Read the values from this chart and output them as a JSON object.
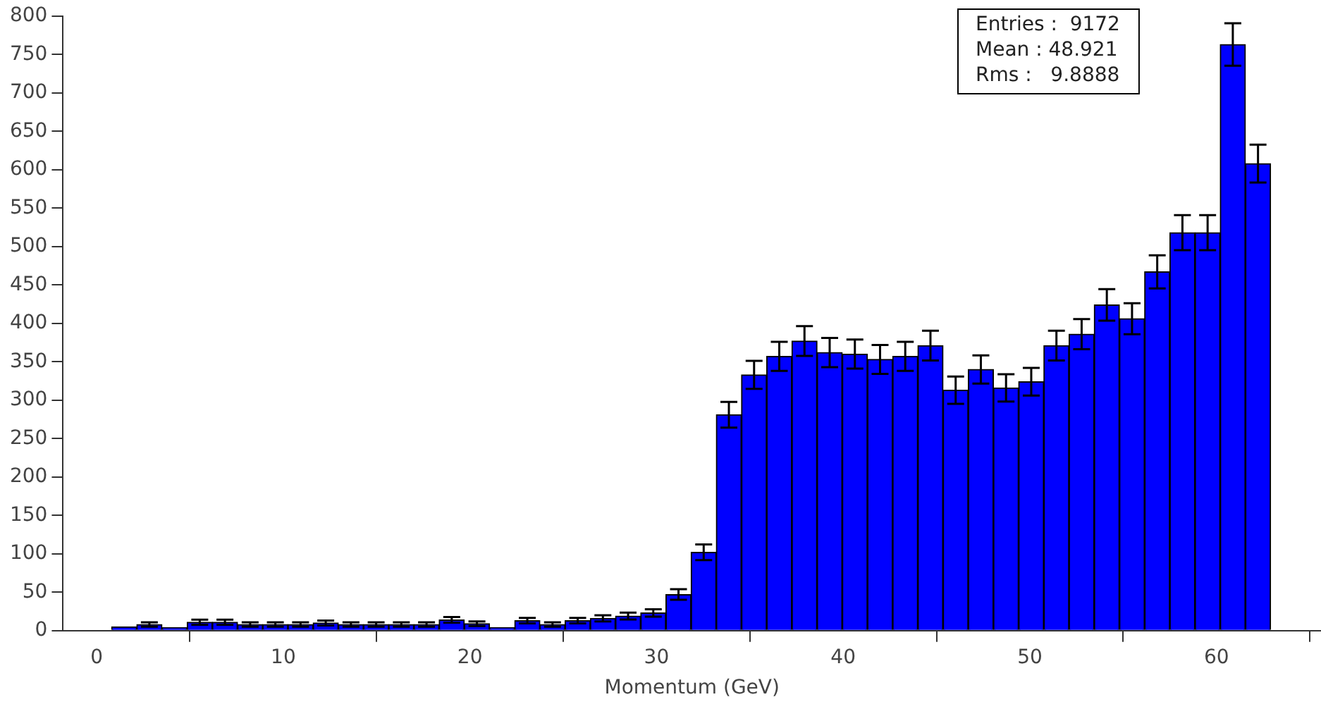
{
  "chart_data": {
    "type": "histogram",
    "xlabel": "Momentum (GeV)",
    "bins": [
      0.8,
      2.15,
      3.5,
      4.85,
      6.2,
      7.55,
      8.9,
      10.25,
      11.6,
      12.95,
      14.3,
      15.65,
      17.0,
      18.35,
      19.7,
      21.05,
      22.4,
      23.75,
      25.1,
      26.45,
      27.8,
      29.15,
      30.5,
      31.85,
      33.2,
      34.55,
      35.9,
      37.25,
      38.6,
      39.95,
      41.3,
      42.65,
      44.0,
      45.35,
      46.7,
      48.05,
      49.4,
      50.75,
      52.1,
      53.45,
      54.8,
      56.15,
      57.5,
      58.85,
      60.2,
      61.55,
      62.9
    ],
    "values": [
      5,
      8,
      4,
      11,
      11,
      8,
      8,
      8,
      10,
      8,
      8,
      8,
      8,
      14,
      9,
      4,
      13,
      8,
      13,
      16,
      19,
      23,
      47,
      102,
      281,
      333,
      357,
      377,
      362,
      360,
      353,
      357,
      371,
      313,
      340,
      316,
      324,
      371,
      386,
      424,
      406,
      467,
      518,
      518,
      763,
      608
    ],
    "errors": [
      null,
      2.8,
      null,
      3.3,
      3.3,
      2.8,
      2.8,
      2.8,
      3.2,
      2.8,
      2.8,
      2.8,
      2.8,
      3.7,
      3,
      null,
      3.6,
      2.8,
      3.6,
      4,
      4.4,
      4.8,
      6.9,
      10.1,
      16.8,
      18.2,
      18.9,
      19.4,
      19,
      19,
      18.8,
      18.9,
      19.3,
      17.7,
      18.4,
      17.8,
      18,
      19.3,
      19.6,
      20.6,
      20.1,
      21.6,
      22.8,
      22.8,
      27.6,
      24.7
    ],
    "color": "#0000ff",
    "xlim": [
      -1.8,
      65.6
    ],
    "xticks": [
      0,
      10,
      20,
      30,
      40,
      50,
      60
    ],
    "ylim": [
      0,
      800
    ],
    "yticks": [
      0,
      50,
      100,
      150,
      200,
      250,
      300,
      350,
      400,
      450,
      500,
      550,
      600,
      650,
      700,
      750,
      800
    ],
    "annotations": [
      "Entries :  9172",
      "Mean : 48.921",
      "Rms :   9.8888"
    ],
    "grid": false,
    "legend": false
  }
}
